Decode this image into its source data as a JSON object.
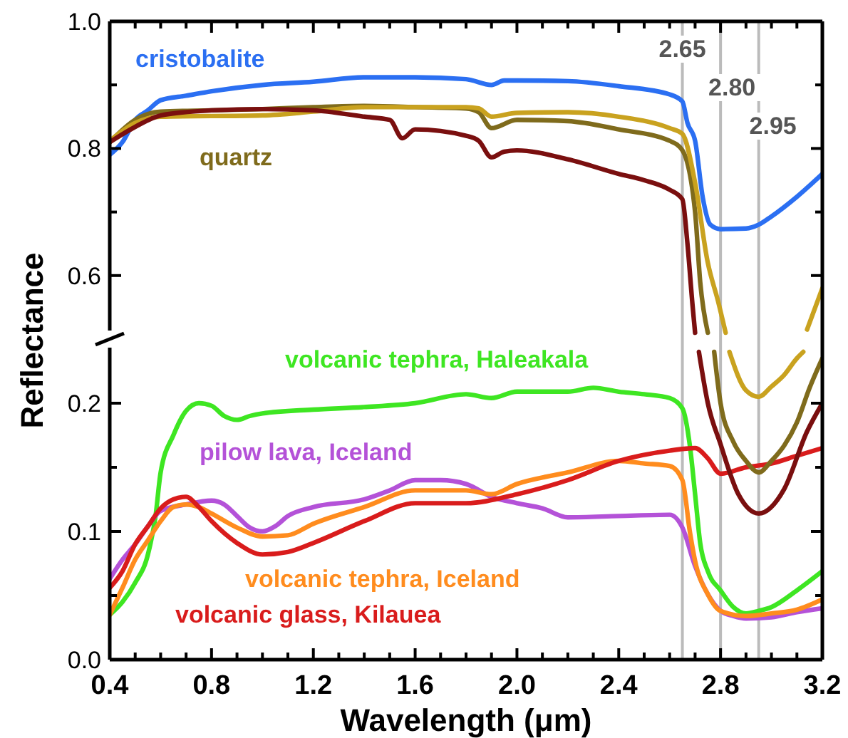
{
  "chart_data": [
    {
      "type": "line",
      "ylabel": "Reflectance",
      "xlim": [
        0.4,
        3.2
      ],
      "ylim": [
        0.5,
        1.0
      ],
      "xticks": [
        {
          "value": 0.4,
          "label": null
        },
        {
          "value": 0.5,
          "label": null
        },
        {
          "value": 0.6,
          "label": null
        },
        {
          "value": 0.7,
          "label": null
        },
        {
          "value": 0.8,
          "label": null
        },
        {
          "value": 0.9,
          "label": null
        },
        {
          "value": 1.0,
          "label": null
        },
        {
          "value": 1.1,
          "label": null
        },
        {
          "value": 1.2,
          "label": null
        },
        {
          "value": 1.3,
          "label": null
        },
        {
          "value": 1.4,
          "label": null
        },
        {
          "value": 1.5,
          "label": null
        },
        {
          "value": 1.6,
          "label": null
        },
        {
          "value": 1.7,
          "label": null
        },
        {
          "value": 1.8,
          "label": null
        },
        {
          "value": 1.9,
          "label": null
        },
        {
          "value": 2.0,
          "label": null
        },
        {
          "value": 2.1,
          "label": null
        },
        {
          "value": 2.2,
          "label": null
        },
        {
          "value": 2.3,
          "label": null
        },
        {
          "value": 2.4,
          "label": null
        },
        {
          "value": 2.5,
          "label": null
        },
        {
          "value": 2.6,
          "label": null
        },
        {
          "value": 2.7,
          "label": null
        },
        {
          "value": 2.8,
          "label": null
        },
        {
          "value": 2.9,
          "label": null
        },
        {
          "value": 3.0,
          "label": null
        },
        {
          "value": 3.1,
          "label": null
        },
        {
          "value": 3.2,
          "label": null
        }
      ],
      "yticks": [
        0.6,
        {
          "value": 0.7,
          "label": null
        },
        0.8,
        {
          "value": 0.9,
          "label": null
        },
        {
          "value": 1.0,
          "label": "1.0"
        }
      ],
      "grid": false,
      "legend": false,
      "marker": "none",
      "line_style": "solid",
      "ref_lines": [
        {
          "axis": "x",
          "value": 2.65,
          "label": "2.65",
          "color": "#bbbbbb"
        },
        {
          "axis": "x",
          "value": 2.8,
          "label": "2.80",
          "color": "#bbbbbb"
        },
        {
          "axis": "x",
          "value": 2.95,
          "label": "2.95",
          "color": "#bbbbbb"
        }
      ],
      "series": [
        {
          "name": "cristobalite",
          "color": "#2b6ff2",
          "x": [
            0.4,
            0.45,
            0.5,
            0.55,
            0.6,
            0.7,
            0.8,
            1.0,
            1.2,
            1.4,
            1.6,
            1.8,
            1.9,
            1.95,
            2.0,
            2.2,
            2.4,
            2.6,
            2.65,
            2.67,
            2.7,
            2.73,
            2.76,
            2.8,
            2.9,
            2.95,
            3.0,
            3.1,
            3.2
          ],
          "values": [
            0.79,
            0.81,
            0.845,
            0.86,
            0.876,
            0.883,
            0.89,
            0.9,
            0.905,
            0.912,
            0.912,
            0.909,
            0.9,
            0.907,
            0.907,
            0.906,
            0.898,
            0.885,
            0.874,
            0.84,
            0.812,
            0.723,
            0.68,
            0.673,
            0.674,
            0.68,
            0.693,
            0.724,
            0.76
          ]
        },
        {
          "name": "quartz",
          "color": "#7f6b1c",
          "x": [
            0.4,
            0.5,
            0.6,
            0.8,
            1.0,
            1.2,
            1.4,
            1.6,
            1.8,
            1.85,
            1.9,
            2.0,
            2.2,
            2.4,
            2.6,
            2.65,
            2.7,
            2.72,
            2.75
          ],
          "values": [
            0.81,
            0.845,
            0.858,
            0.86,
            0.862,
            0.865,
            0.867,
            0.865,
            0.863,
            0.857,
            0.832,
            0.845,
            0.843,
            0.83,
            0.812,
            0.797,
            0.7,
            0.59,
            0.51
          ]
        },
        {
          "color": "#c9a21f",
          "x": [
            0.4,
            0.5,
            0.6,
            1.0,
            1.2,
            1.4,
            1.6,
            1.8,
            1.85,
            1.9,
            2.0,
            2.2,
            2.4,
            2.6,
            2.65,
            2.7,
            2.75,
            2.79,
            2.82,
            3.0,
            3.14,
            3.2
          ],
          "values": [
            0.812,
            0.84,
            0.85,
            0.852,
            0.858,
            0.865,
            0.865,
            0.865,
            0.863,
            0.85,
            0.856,
            0.857,
            0.85,
            0.832,
            0.823,
            0.746,
            0.62,
            0.56,
            0.51,
            null,
            0.515,
            0.58
          ]
        },
        {
          "color": "#7a0f0f",
          "x": [
            0.4,
            0.5,
            0.6,
            0.8,
            1.0,
            1.2,
            1.4,
            1.5,
            1.55,
            1.6,
            1.8,
            1.85,
            1.9,
            1.95,
            2.0,
            2.2,
            2.4,
            2.5,
            2.6,
            2.65,
            2.67,
            2.69,
            2.7
          ],
          "values": [
            0.81,
            0.834,
            0.852,
            0.86,
            0.862,
            0.86,
            0.85,
            0.845,
            0.816,
            0.83,
            0.82,
            0.812,
            0.786,
            0.795,
            0.797,
            0.783,
            0.76,
            0.75,
            0.735,
            0.72,
            0.65,
            0.553,
            0.51
          ]
        }
      ]
    },
    {
      "type": "line",
      "xlabel": "Wavelength (μm)",
      "xlim": [
        0.4,
        3.2
      ],
      "ylim": [
        0,
        0.25
      ],
      "xticks": [
        0.4,
        {
          "value": 0.5,
          "label": null
        },
        {
          "value": 0.6,
          "label": null
        },
        {
          "value": 0.7,
          "label": null
        },
        0.8,
        {
          "value": 0.9,
          "label": null
        },
        {
          "value": 1.0,
          "label": null
        },
        {
          "value": 1.1,
          "label": null
        },
        1.2,
        {
          "value": 1.3,
          "label": null
        },
        {
          "value": 1.4,
          "label": null
        },
        {
          "value": 1.5,
          "label": null
        },
        1.6,
        {
          "value": 1.7,
          "label": null
        },
        {
          "value": 1.8,
          "label": null
        },
        {
          "value": 1.9,
          "label": null
        },
        {
          "value": 2.0,
          "label": "2.0"
        },
        {
          "value": 2.1,
          "label": null
        },
        {
          "value": 2.2,
          "label": null
        },
        {
          "value": 2.3,
          "label": null
        },
        2.4,
        {
          "value": 2.5,
          "label": null
        },
        {
          "value": 2.6,
          "label": null
        },
        {
          "value": 2.7,
          "label": null
        },
        2.8,
        {
          "value": 2.9,
          "label": null
        },
        {
          "value": 3.0,
          "label": null
        },
        {
          "value": 3.1,
          "label": null
        },
        3.2
      ],
      "yticks": [
        {
          "value": 0,
          "label": "0.0"
        },
        {
          "value": 0.05,
          "label": null
        },
        0.1,
        {
          "value": 0.15,
          "label": null
        },
        0.2
      ],
      "grid": false,
      "legend": false,
      "marker": "none",
      "line_style": "solid",
      "ref_lines": [
        {
          "axis": "x",
          "value": 2.65,
          "color": "#bbbbbb"
        },
        {
          "axis": "x",
          "value": 2.8,
          "color": "#bbbbbb"
        },
        {
          "axis": "x",
          "value": 2.95,
          "color": "#bbbbbb"
        }
      ],
      "series": [
        {
          "name": "volcanic tephra, Haleakala",
          "color": "#3ee622",
          "x": [
            0.4,
            0.45,
            0.5,
            0.55,
            0.58,
            0.6,
            0.65,
            0.7,
            0.75,
            0.8,
            0.85,
            0.9,
            0.95,
            1.0,
            1.2,
            1.4,
            1.6,
            1.8,
            1.9,
            2.0,
            2.2,
            2.3,
            2.4,
            2.5,
            2.6,
            2.65,
            2.68,
            2.7,
            2.72,
            2.75,
            2.8,
            2.85,
            2.9,
            2.95,
            3.0,
            3.1,
            3.2
          ],
          "values": [
            0.035,
            0.045,
            0.06,
            0.082,
            0.112,
            0.146,
            0.175,
            0.194,
            0.2,
            0.198,
            0.19,
            0.187,
            0.19,
            0.192,
            0.195,
            0.197,
            0.2,
            0.207,
            0.204,
            0.209,
            0.209,
            0.212,
            0.209,
            0.207,
            0.204,
            0.196,
            0.166,
            0.129,
            0.091,
            0.069,
            0.054,
            0.041,
            0.036,
            0.038,
            0.041,
            0.054,
            0.069
          ]
        },
        {
          "name": "pilow lava, Iceland",
          "color": "#b452d8",
          "x": [
            0.4,
            0.45,
            0.5,
            0.55,
            0.6,
            0.7,
            0.8,
            0.85,
            0.9,
            0.95,
            1.0,
            1.05,
            1.1,
            1.2,
            1.4,
            1.5,
            1.6,
            1.7,
            1.8,
            1.9,
            2.0,
            2.1,
            2.2,
            2.4,
            2.6,
            2.65,
            2.7,
            2.75,
            2.8,
            2.85,
            2.9,
            3.0,
            3.1,
            3.2
          ],
          "values": [
            0.063,
            0.078,
            0.09,
            0.104,
            0.116,
            0.121,
            0.124,
            0.121,
            0.112,
            0.103,
            0.1,
            0.104,
            0.112,
            0.119,
            0.125,
            0.132,
            0.14,
            0.14,
            0.137,
            0.127,
            0.122,
            0.118,
            0.111,
            0.112,
            0.113,
            0.103,
            0.073,
            0.051,
            0.038,
            0.034,
            0.032,
            0.033,
            0.037,
            0.04
          ]
        },
        {
          "name": "volcanic tephra, Iceland",
          "color": "#ff8c1e",
          "x": [
            0.4,
            0.45,
            0.5,
            0.55,
            0.6,
            0.65,
            0.7,
            0.75,
            0.8,
            0.9,
            1.0,
            1.1,
            1.2,
            1.4,
            1.6,
            1.8,
            1.9,
            2.0,
            2.2,
            2.4,
            2.5,
            2.6,
            2.65,
            2.68,
            2.7,
            2.75,
            2.8,
            2.9,
            3.0,
            3.1,
            3.2
          ],
          "values": [
            0.035,
            0.056,
            0.078,
            0.093,
            0.108,
            0.119,
            0.121,
            0.119,
            0.114,
            0.103,
            0.096,
            0.097,
            0.106,
            0.119,
            0.132,
            0.132,
            0.129,
            0.137,
            0.146,
            0.155,
            0.153,
            0.151,
            0.14,
            0.099,
            0.077,
            0.051,
            0.038,
            0.034,
            0.036,
            0.039,
            0.047
          ]
        },
        {
          "name": "volcanic glass, Kilauea",
          "color": "#d91c1c",
          "x": [
            0.4,
            0.45,
            0.5,
            0.55,
            0.6,
            0.65,
            0.7,
            0.75,
            0.8,
            0.9,
            1.0,
            1.1,
            1.2,
            1.4,
            1.6,
            1.8,
            2.0,
            2.2,
            2.4,
            2.6,
            2.7,
            2.75,
            2.8,
            2.9,
            3.0,
            3.1,
            3.2
          ],
          "values": [
            0.056,
            0.069,
            0.09,
            0.104,
            0.118,
            0.125,
            0.127,
            0.119,
            0.108,
            0.091,
            0.082,
            0.084,
            0.091,
            0.108,
            0.122,
            0.122,
            0.129,
            0.14,
            0.155,
            0.163,
            0.165,
            0.157,
            0.145,
            0.15,
            0.153,
            0.159,
            0.165
          ]
        },
        {
          "color": "#c9a21f",
          "x": [
            2.835,
            2.9,
            2.95,
            3.0,
            3.05,
            3.1,
            3.125
          ],
          "values": [
            0.24,
            0.21,
            0.205,
            0.213,
            0.222,
            0.235,
            0.24
          ]
        },
        {
          "color": "#7f6b1c",
          "x": [
            2.775,
            2.8,
            2.85,
            2.9,
            2.95,
            3.0,
            3.05,
            3.1,
            3.15,
            3.2
          ],
          "values": [
            0.24,
            0.2,
            0.17,
            0.155,
            0.146,
            0.155,
            0.167,
            0.185,
            0.212,
            0.235
          ]
        },
        {
          "color": "#7a0f0f",
          "x": [
            2.715,
            2.75,
            2.8,
            2.87,
            2.95,
            3.05,
            3.14,
            3.2
          ],
          "values": [
            0.24,
            0.2,
            0.168,
            0.129,
            0.114,
            0.133,
            0.178,
            0.2
          ]
        }
      ]
    }
  ]
}
